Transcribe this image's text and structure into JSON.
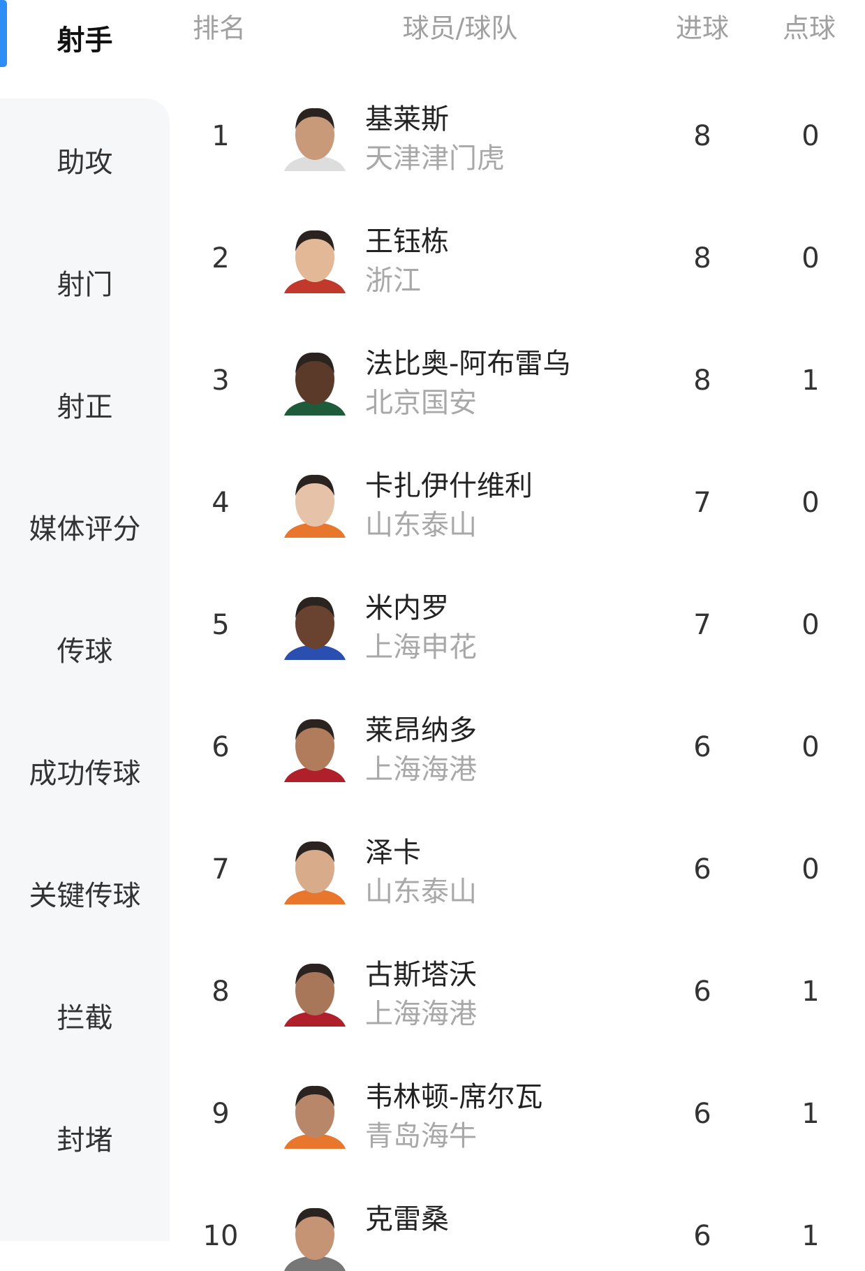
{
  "tabs": [
    "射手",
    "助攻",
    "射门",
    "射正",
    "媒体评分",
    "传球",
    "成功传球",
    "关键传球",
    "拦截",
    "封堵"
  ],
  "table": {
    "headers": [
      "排名",
      "球员/球队",
      "进球",
      "点球"
    ],
    "rows": [
      {
        "rank": 1,
        "name": "基莱斯",
        "team": "天津津门虎",
        "goals": 8,
        "penalties": 0
      },
      {
        "rank": 2,
        "name": "王钰栋",
        "team": "浙江",
        "goals": 8,
        "penalties": 0
      },
      {
        "rank": 3,
        "name": "法比奥-阿布雷乌",
        "team": "北京国安",
        "goals": 8,
        "penalties": 1
      },
      {
        "rank": 4,
        "name": "卡扎伊什维利",
        "team": "山东泰山",
        "goals": 7,
        "penalties": 0
      },
      {
        "rank": 5,
        "name": "米内罗",
        "team": "上海申花",
        "goals": 7,
        "penalties": 0
      },
      {
        "rank": 6,
        "name": "莱昂纳多",
        "team": "上海海港",
        "goals": 6,
        "penalties": 0
      },
      {
        "rank": 7,
        "name": "泽卡",
        "team": "山东泰山",
        "goals": 6,
        "penalties": 0
      },
      {
        "rank": 8,
        "name": "古斯塔沃",
        "team": "上海海港",
        "goals": 6,
        "penalties": 1
      },
      {
        "rank": 9,
        "name": "韦林顿-席尔瓦",
        "team": "青岛海牛",
        "goals": 6,
        "penalties": 1
      },
      {
        "rank": 10,
        "name": "克雷桑",
        "goals": 6,
        "penalties": 1
      }
    ]
  }
}
